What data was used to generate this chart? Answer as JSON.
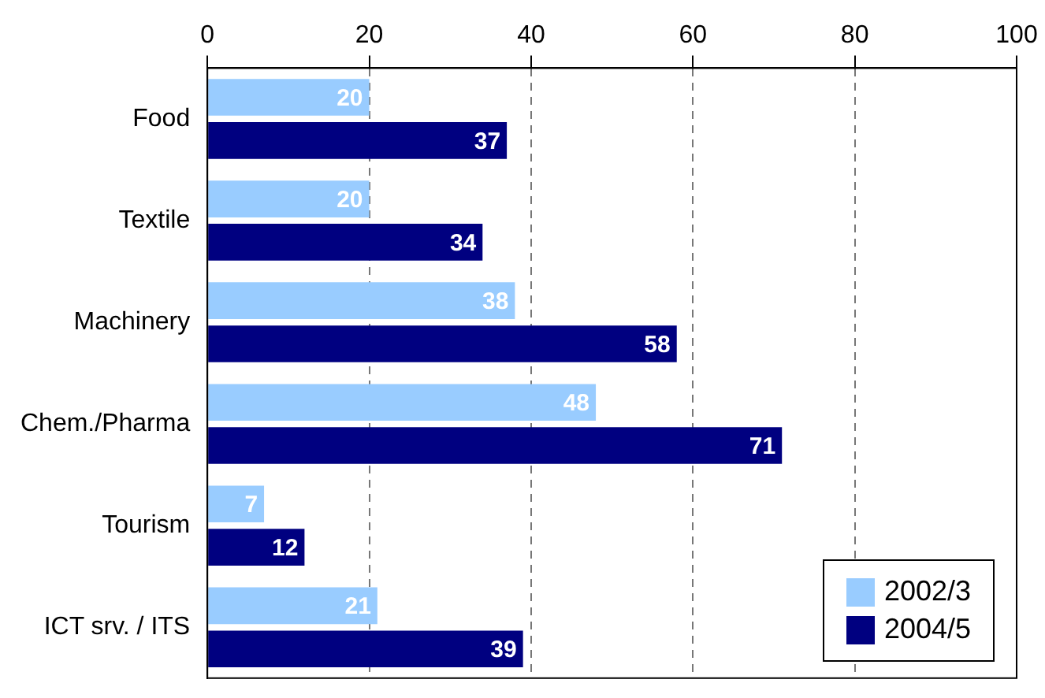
{
  "chart_data": {
    "type": "bar",
    "orientation": "horizontal",
    "categories": [
      "Food",
      "Textile",
      "Machinery",
      "Chem./Pharma",
      "Tourism",
      "ICT srv. / ITS"
    ],
    "series": [
      {
        "name": "2002/3",
        "color": "#99ccff",
        "values": [
          20,
          20,
          38,
          48,
          7,
          21
        ]
      },
      {
        "name": "2004/5",
        "color": "#000080",
        "values": [
          37,
          34,
          58,
          71,
          12,
          39
        ]
      }
    ],
    "xlim": [
      0,
      100
    ],
    "xticks": [
      0,
      20,
      40,
      60,
      80,
      100
    ],
    "grid": "x",
    "data_labels": true,
    "legend": "bottom right"
  }
}
